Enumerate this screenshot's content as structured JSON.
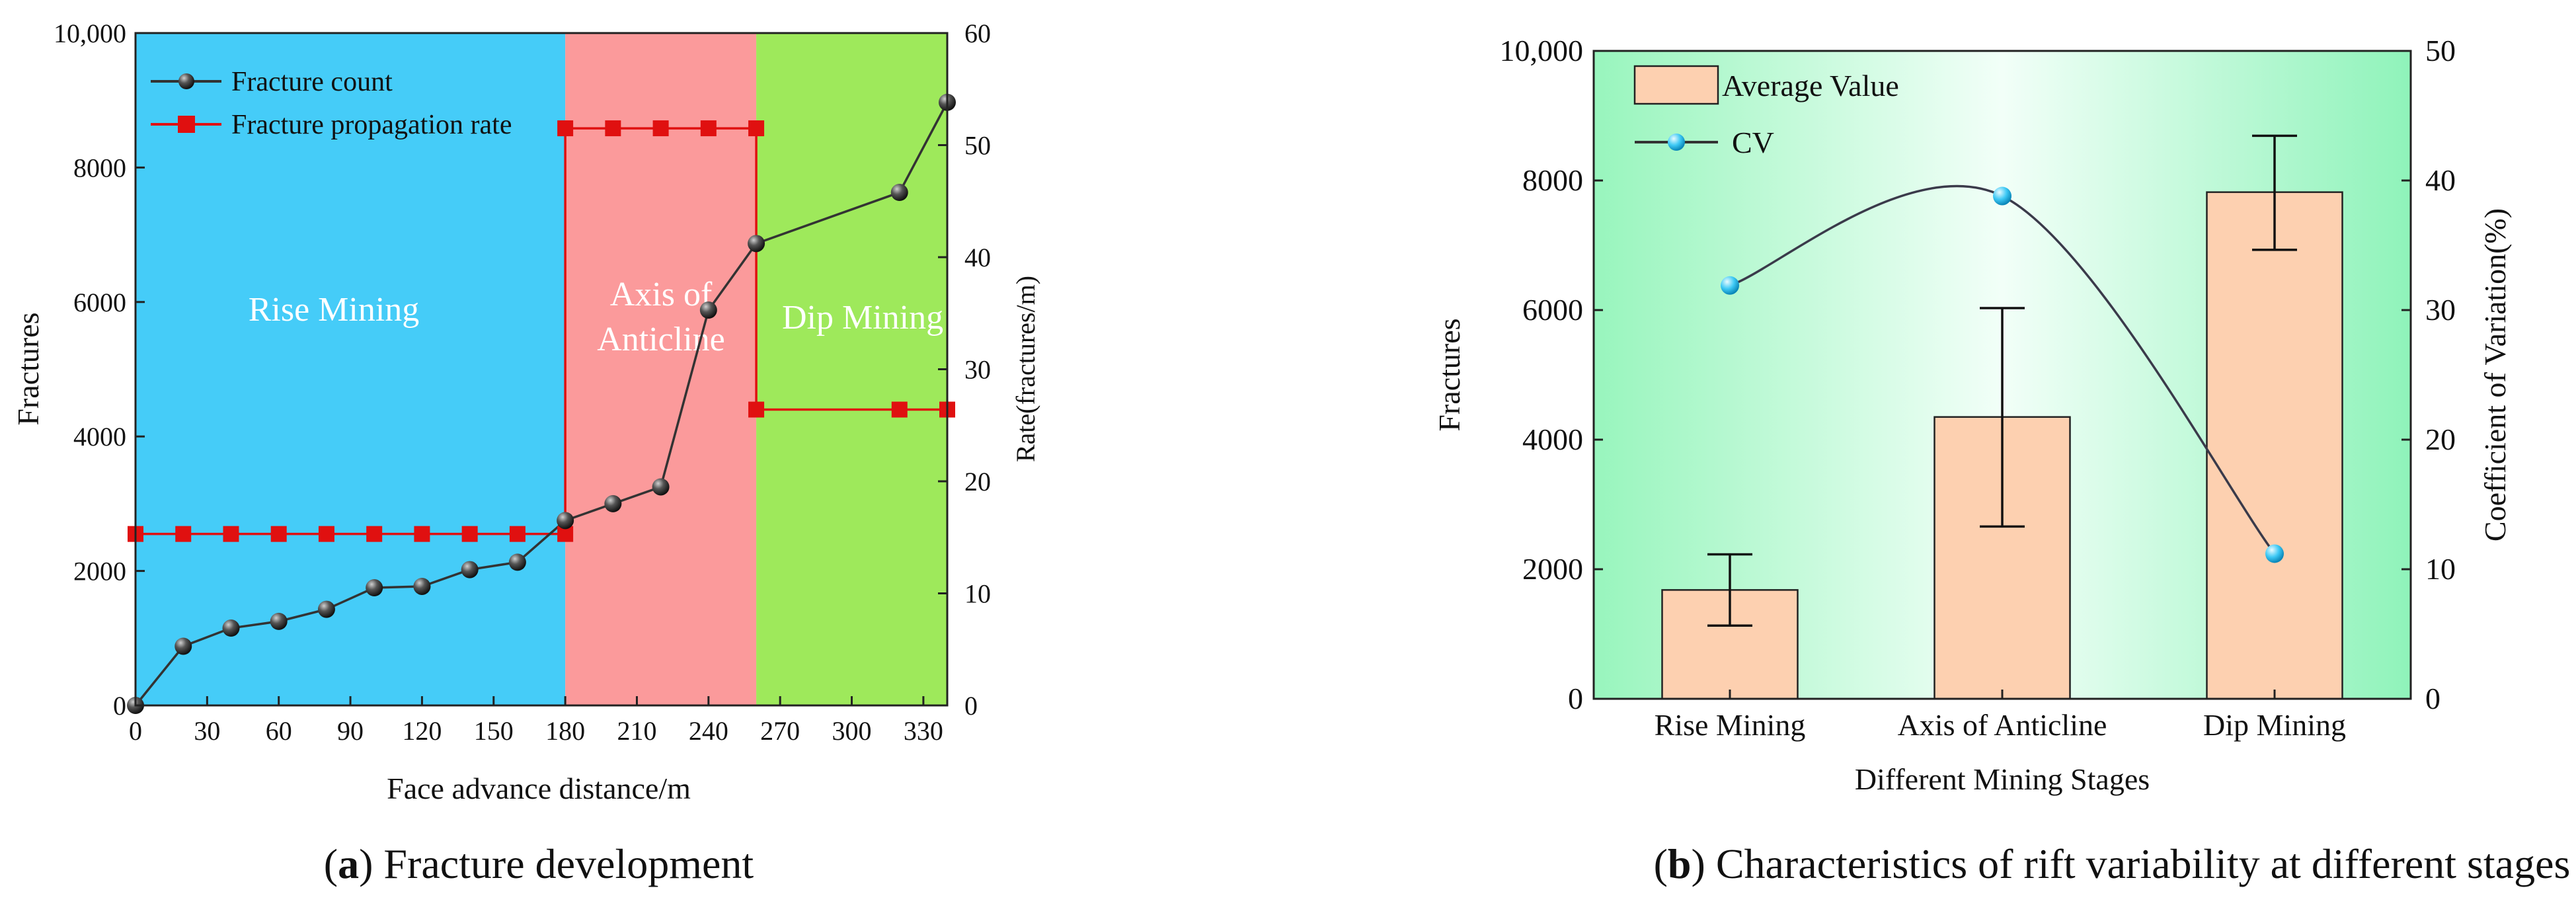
{
  "chart_data": [
    {
      "type": "line",
      "panel": "a",
      "x": [
        0,
        20,
        40,
        60,
        80,
        100,
        120,
        140,
        160,
        180,
        200,
        220,
        240,
        260,
        320,
        340
      ],
      "series": [
        {
          "name": "Fracture count",
          "axis": "left",
          "marker": "sphere",
          "color": "#333333",
          "values": [
            0,
            880,
            1150,
            1250,
            1430,
            1750,
            1770,
            2020,
            2130,
            2750,
            3000,
            3250,
            5880,
            6870,
            7630,
            8970
          ]
        },
        {
          "name": "Fracture propagation rate",
          "axis": "right",
          "marker": "square",
          "color": "#e01010",
          "step": true,
          "points": [
            [
              0,
              15.3
            ],
            [
              20,
              15.3
            ],
            [
              40,
              15.3
            ],
            [
              60,
              15.3
            ],
            [
              80,
              15.3
            ],
            [
              100,
              15.3
            ],
            [
              120,
              15.3
            ],
            [
              140,
              15.3
            ],
            [
              160,
              15.3
            ],
            [
              180,
              15.3
            ],
            [
              180,
              51.5
            ],
            [
              200,
              51.5
            ],
            [
              220,
              51.5
            ],
            [
              240,
              51.5
            ],
            [
              260,
              51.5
            ],
            [
              260,
              26.4
            ],
            [
              320,
              26.4
            ],
            [
              340,
              26.4
            ]
          ]
        }
      ],
      "regions": [
        {
          "label": "Rise Mining",
          "from": 0,
          "to": 180,
          "color": "#45ccf8"
        },
        {
          "label": "Axis of Anticline",
          "from": 180,
          "to": 260,
          "color": "#fb9a9b"
        },
        {
          "label": "Dip Mining",
          "from": 260,
          "to": 340,
          "color": "#9ee95b"
        }
      ],
      "xlabel": "Face advance distance/m",
      "ylabel": "Fractures",
      "y2label": "Rate(fractures/m)",
      "xlim": [
        0,
        340
      ],
      "ylim": [
        0,
        10000
      ],
      "y2lim": [
        0,
        60
      ],
      "xticks": [
        0,
        30,
        60,
        90,
        120,
        150,
        180,
        210,
        240,
        270,
        300,
        330
      ],
      "yticks": [
        "0",
        "2000",
        "4000",
        "6000",
        "8000",
        "10,000"
      ],
      "y2ticks": [
        "0",
        "10",
        "20",
        "30",
        "40",
        "50",
        "60"
      ],
      "legend": {
        "position": "top-left",
        "entries": [
          "Fracture count",
          "Fracture propagation rate"
        ]
      }
    },
    {
      "type": "bar",
      "panel": "b",
      "categories": [
        "Rise Mining",
        "Axis of Anticline",
        "Dip Mining"
      ],
      "series": [
        {
          "name": "Average Value",
          "axis": "left",
          "color": "#fdd0b0",
          "values": [
            1680,
            4350,
            7820
          ],
          "error_low": [
            1130,
            2660,
            6930
          ],
          "error_high": [
            2230,
            6030,
            8690
          ]
        },
        {
          "name": "CV",
          "axis": "right",
          "type": "line",
          "marker": "circle",
          "color": "#3ec9f5",
          "values": [
            31.9,
            38.8,
            11.2
          ]
        }
      ],
      "xlabel": "Different Mining Stages",
      "ylabel": "Fractures",
      "y2label": "Coefficient of Variation(%)",
      "ylim": [
        0,
        10000
      ],
      "y2lim": [
        0,
        50
      ],
      "yticks": [
        "0",
        "2000",
        "4000",
        "6000",
        "8000",
        "10,000"
      ],
      "y2ticks": [
        "0",
        "10",
        "20",
        "30",
        "40",
        "50"
      ],
      "legend": {
        "position": "top-left",
        "entries": [
          "Average Value",
          "CV"
        ]
      }
    }
  ],
  "captions": {
    "a": {
      "letter": "a",
      "text": " Fracture development"
    },
    "b": {
      "letter": "b",
      "text": " Characteristics of rift variability at different stages"
    }
  },
  "regionLabels": {
    "rise": "Rise Mining",
    "axis1": "Axis of",
    "axis2": "Anticline",
    "dip": "Dip Mining"
  }
}
